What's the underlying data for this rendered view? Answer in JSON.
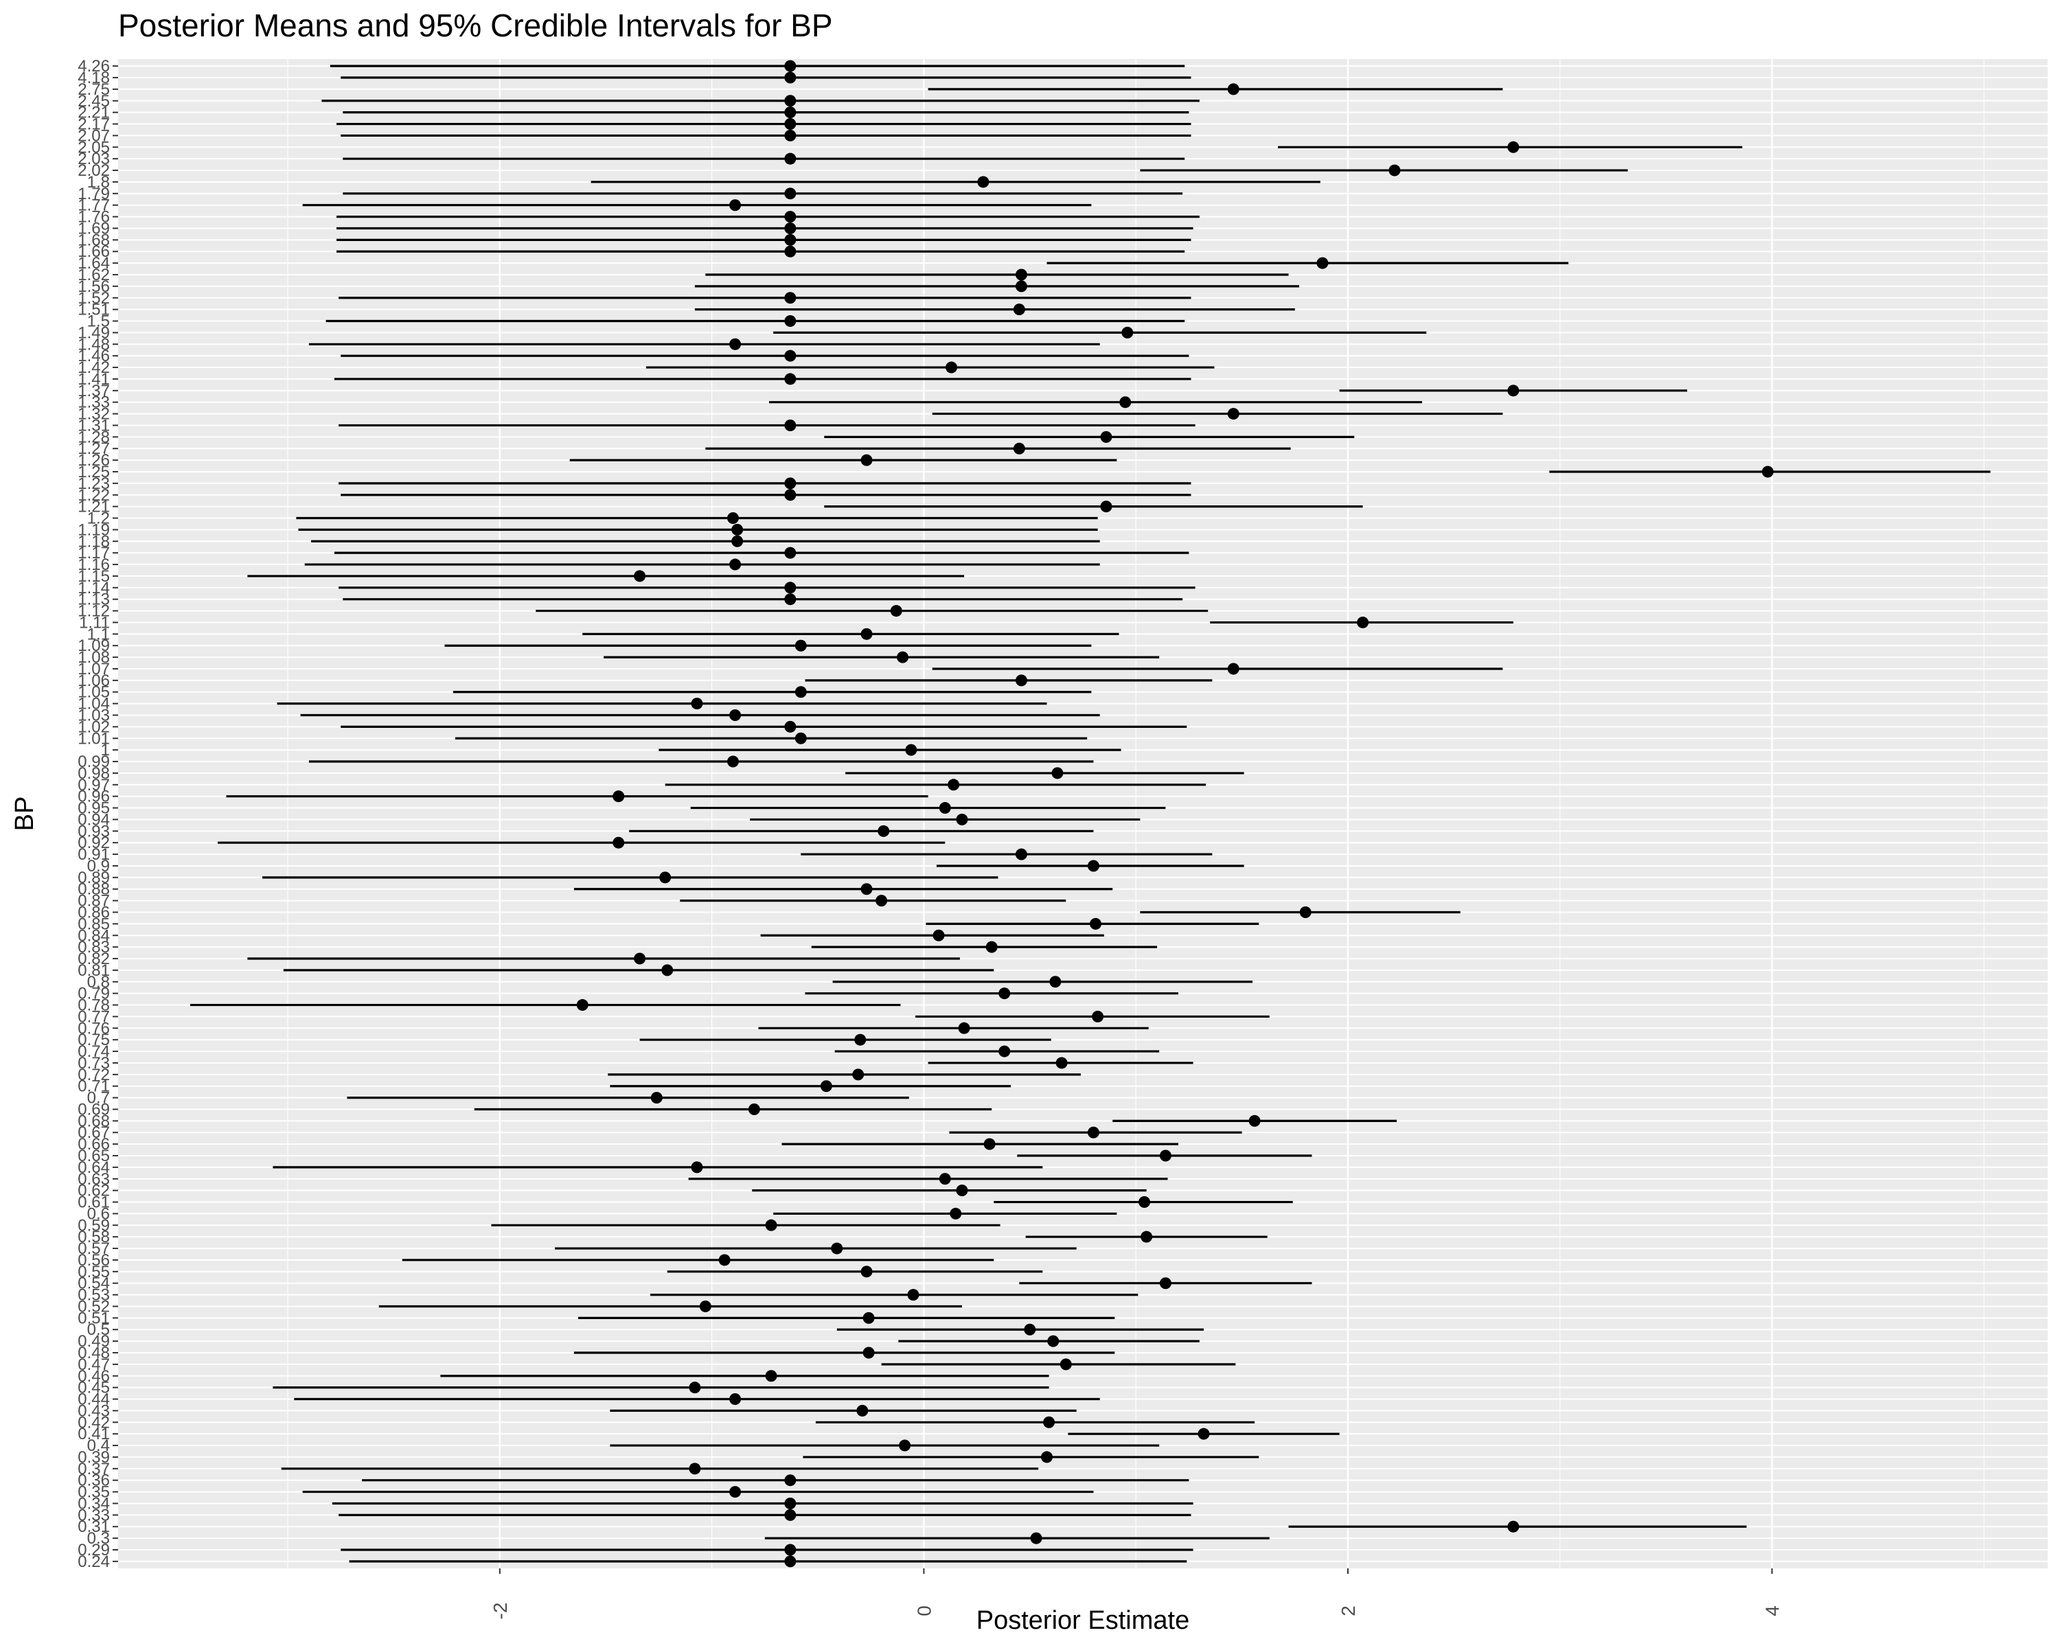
{
  "chart_data": {
    "type": "scatter",
    "title": "Posterior Means and 95% Credible Intervals for BP",
    "xlabel": "Posterior Estimate",
    "ylabel": "BP",
    "xlim": [
      -3.8,
      5.3
    ],
    "x_ticks": [
      -2,
      0,
      2,
      4
    ],
    "x_tick_labels": [
      "-2",
      "0",
      "2",
      "4"
    ],
    "grid": true,
    "colors": {
      "panel": "#ebebeb",
      "grid": "#ffffff",
      "mark": "#000000",
      "tick_text": "#4d4d4d"
    },
    "series": [
      {
        "marker": "point with horizontal interval",
        "points": [
          {
            "label": "4.26",
            "mean": -0.63,
            "lower": -2.8,
            "upper": 1.23
          },
          {
            "label": "4.18",
            "mean": -0.63,
            "lower": -2.75,
            "upper": 1.26
          },
          {
            "label": "2.75",
            "mean": 1.46,
            "lower": 0.02,
            "upper": 2.73
          },
          {
            "label": "2.45",
            "mean": -0.63,
            "lower": -2.84,
            "upper": 1.3
          },
          {
            "label": "2.21",
            "mean": -0.63,
            "lower": -2.74,
            "upper": 1.25
          },
          {
            "label": "2.17",
            "mean": -0.63,
            "lower": -2.77,
            "upper": 1.26
          },
          {
            "label": "2.07",
            "mean": -0.63,
            "lower": -2.75,
            "upper": 1.26
          },
          {
            "label": "2.05",
            "mean": 2.78,
            "lower": 1.67,
            "upper": 3.86
          },
          {
            "label": "2.03",
            "mean": -0.63,
            "lower": -2.74,
            "upper": 1.23
          },
          {
            "label": "2.02",
            "mean": 2.22,
            "lower": 1.02,
            "upper": 3.32
          },
          {
            "label": "1.8",
            "mean": 0.28,
            "lower": -1.57,
            "upper": 1.87
          },
          {
            "label": "1.79",
            "mean": -0.63,
            "lower": -2.74,
            "upper": 1.22
          },
          {
            "label": "1.77",
            "mean": -0.89,
            "lower": -2.93,
            "upper": 0.79
          },
          {
            "label": "1.76",
            "mean": -0.63,
            "lower": -2.77,
            "upper": 1.3
          },
          {
            "label": "1.69",
            "mean": -0.63,
            "lower": -2.77,
            "upper": 1.27
          },
          {
            "label": "1.68",
            "mean": -0.63,
            "lower": -2.77,
            "upper": 1.26
          },
          {
            "label": "1.66",
            "mean": -0.63,
            "lower": -2.77,
            "upper": 1.23
          },
          {
            "label": "1.64",
            "mean": 1.88,
            "lower": 0.58,
            "upper": 3.04
          },
          {
            "label": "1.62",
            "mean": 0.46,
            "lower": -1.03,
            "upper": 1.72
          },
          {
            "label": "1.56",
            "mean": 0.46,
            "lower": -1.08,
            "upper": 1.77
          },
          {
            "label": "1.52",
            "mean": -0.63,
            "lower": -2.76,
            "upper": 1.26
          },
          {
            "label": "1.51",
            "mean": 0.45,
            "lower": -1.08,
            "upper": 1.75
          },
          {
            "label": "1.5",
            "mean": -0.63,
            "lower": -2.82,
            "upper": 1.23
          },
          {
            "label": "1.49",
            "mean": 0.96,
            "lower": -0.71,
            "upper": 2.37
          },
          {
            "label": "1.48",
            "mean": -0.89,
            "lower": -2.9,
            "upper": 0.83
          },
          {
            "label": "1.46",
            "mean": -0.63,
            "lower": -2.75,
            "upper": 1.25
          },
          {
            "label": "1.42",
            "mean": 0.13,
            "lower": -1.31,
            "upper": 1.37
          },
          {
            "label": "1.41",
            "mean": -0.63,
            "lower": -2.78,
            "upper": 1.26
          },
          {
            "label": "1.37",
            "mean": 2.78,
            "lower": 1.96,
            "upper": 3.6
          },
          {
            "label": "1.33",
            "mean": 0.95,
            "lower": -0.73,
            "upper": 2.35
          },
          {
            "label": "1.32",
            "mean": 1.46,
            "lower": 0.04,
            "upper": 2.73
          },
          {
            "label": "1.31",
            "mean": -0.63,
            "lower": -2.76,
            "upper": 1.28
          },
          {
            "label": "1.28",
            "mean": 0.86,
            "lower": -0.47,
            "upper": 2.03
          },
          {
            "label": "1.27",
            "mean": 0.45,
            "lower": -1.03,
            "upper": 1.73
          },
          {
            "label": "1.26",
            "mean": -0.27,
            "lower": -1.67,
            "upper": 0.91
          },
          {
            "label": "1.25",
            "mean": 3.98,
            "lower": 2.95,
            "upper": 5.03
          },
          {
            "label": "1.23",
            "mean": -0.63,
            "lower": -2.76,
            "upper": 1.26
          },
          {
            "label": "1.22",
            "mean": -0.63,
            "lower": -2.75,
            "upper": 1.26
          },
          {
            "label": "1.21",
            "mean": 0.86,
            "lower": -0.47,
            "upper": 2.07
          },
          {
            "label": "1.2",
            "mean": -0.9,
            "lower": -2.96,
            "upper": 0.82
          },
          {
            "label": "1.19",
            "mean": -0.88,
            "lower": -2.95,
            "upper": 0.82
          },
          {
            "label": "1.18",
            "mean": -0.88,
            "lower": -2.89,
            "upper": 0.83
          },
          {
            "label": "1.17",
            "mean": -0.63,
            "lower": -2.78,
            "upper": 1.25
          },
          {
            "label": "1.16",
            "mean": -0.89,
            "lower": -2.92,
            "upper": 0.83
          },
          {
            "label": "1.15",
            "mean": -1.34,
            "lower": -3.19,
            "upper": 0.19
          },
          {
            "label": "1.14",
            "mean": -0.63,
            "lower": -2.76,
            "upper": 1.28
          },
          {
            "label": "1.13",
            "mean": -0.63,
            "lower": -2.74,
            "upper": 1.22
          },
          {
            "label": "1.12",
            "mean": -0.13,
            "lower": -1.83,
            "upper": 1.34
          },
          {
            "label": "1.11",
            "mean": 2.07,
            "lower": 1.35,
            "upper": 2.78
          },
          {
            "label": "1.1",
            "mean": -0.27,
            "lower": -1.61,
            "upper": 0.92
          },
          {
            "label": "1.09",
            "mean": -0.58,
            "lower": -2.26,
            "upper": 0.79
          },
          {
            "label": "1.08",
            "mean": -0.1,
            "lower": -1.51,
            "upper": 1.11
          },
          {
            "label": "1.07",
            "mean": 1.46,
            "lower": 0.04,
            "upper": 2.73
          },
          {
            "label": "1.06",
            "mean": 0.46,
            "lower": -0.56,
            "upper": 1.36
          },
          {
            "label": "1.05",
            "mean": -0.58,
            "lower": -2.22,
            "upper": 0.79
          },
          {
            "label": "1.04",
            "mean": -1.07,
            "lower": -3.05,
            "upper": 0.58
          },
          {
            "label": "1.03",
            "mean": -0.89,
            "lower": -2.94,
            "upper": 0.83
          },
          {
            "label": "1.02",
            "mean": -0.63,
            "lower": -2.75,
            "upper": 1.24
          },
          {
            "label": "1.01",
            "mean": -0.58,
            "lower": -2.21,
            "upper": 0.77
          },
          {
            "label": "1",
            "mean": -0.06,
            "lower": -1.25,
            "upper": 0.93
          },
          {
            "label": "0.99",
            "mean": -0.9,
            "lower": -2.9,
            "upper": 0.8
          },
          {
            "label": "0.98",
            "mean": 0.63,
            "lower": -0.37,
            "upper": 1.51
          },
          {
            "label": "0.97",
            "mean": 0.14,
            "lower": -1.22,
            "upper": 1.33
          },
          {
            "label": "0.96",
            "mean": -1.44,
            "lower": -3.29,
            "upper": 0.02
          },
          {
            "label": "0.95",
            "mean": 0.1,
            "lower": -1.1,
            "upper": 1.14
          },
          {
            "label": "0.94",
            "mean": 0.18,
            "lower": -0.82,
            "upper": 1.02
          },
          {
            "label": "0.93",
            "mean": -0.19,
            "lower": -1.39,
            "upper": 0.8
          },
          {
            "label": "0.92",
            "mean": -1.44,
            "lower": -3.33,
            "upper": 0.1
          },
          {
            "label": "0.91",
            "mean": 0.46,
            "lower": -0.58,
            "upper": 1.36
          },
          {
            "label": "0.9",
            "mean": 0.8,
            "lower": 0.06,
            "upper": 1.51
          },
          {
            "label": "0.89",
            "mean": -1.22,
            "lower": -3.12,
            "upper": 0.35
          },
          {
            "label": "0.88",
            "mean": -0.27,
            "lower": -1.65,
            "upper": 0.89
          },
          {
            "label": "0.87",
            "mean": -0.2,
            "lower": -1.15,
            "upper": 0.67
          },
          {
            "label": "0.86",
            "mean": 1.8,
            "lower": 1.02,
            "upper": 2.53
          },
          {
            "label": "0.85",
            "mean": 0.81,
            "lower": 0.01,
            "upper": 1.58
          },
          {
            "label": "0.84",
            "mean": 0.07,
            "lower": -0.77,
            "upper": 0.85
          },
          {
            "label": "0.83",
            "mean": 0.32,
            "lower": -0.53,
            "upper": 1.1
          },
          {
            "label": "0.82",
            "mean": -1.34,
            "lower": -3.19,
            "upper": 0.17
          },
          {
            "label": "0.81",
            "mean": -1.21,
            "lower": -3.02,
            "upper": 0.33
          },
          {
            "label": "0.8",
            "mean": 0.62,
            "lower": -0.43,
            "upper": 1.55
          },
          {
            "label": "0.79",
            "mean": 0.38,
            "lower": -0.56,
            "upper": 1.2
          },
          {
            "label": "0.78",
            "mean": -1.61,
            "lower": -3.46,
            "upper": -0.11
          },
          {
            "label": "0.77",
            "mean": 0.82,
            "lower": -0.04,
            "upper": 1.63
          },
          {
            "label": "0.76",
            "mean": 0.19,
            "lower": -0.78,
            "upper": 1.06
          },
          {
            "label": "0.75",
            "mean": -0.3,
            "lower": -1.34,
            "upper": 0.6
          },
          {
            "label": "0.74",
            "mean": 0.38,
            "lower": -0.42,
            "upper": 1.11
          },
          {
            "label": "0.73",
            "mean": 0.65,
            "lower": 0.02,
            "upper": 1.27
          },
          {
            "label": "0.72",
            "mean": -0.31,
            "lower": -1.49,
            "upper": 0.74
          },
          {
            "label": "0.71",
            "mean": -0.46,
            "lower": -1.48,
            "upper": 0.41
          },
          {
            "label": "0.7",
            "mean": -1.26,
            "lower": -2.72,
            "upper": -0.07
          },
          {
            "label": "0.69",
            "mean": -0.8,
            "lower": -2.12,
            "upper": 0.32
          },
          {
            "label": "0.68",
            "mean": 1.56,
            "lower": 0.89,
            "upper": 2.23
          },
          {
            "label": "0.67",
            "mean": 0.8,
            "lower": 0.12,
            "upper": 1.5
          },
          {
            "label": "0.66",
            "mean": 0.31,
            "lower": -0.67,
            "upper": 1.2
          },
          {
            "label": "0.65",
            "mean": 1.14,
            "lower": 0.44,
            "upper": 1.83
          },
          {
            "label": "0.64",
            "mean": -1.07,
            "lower": -3.07,
            "upper": 0.56
          },
          {
            "label": "0.63",
            "mean": 0.1,
            "lower": -1.11,
            "upper": 1.15
          },
          {
            "label": "0.62",
            "mean": 0.18,
            "lower": -0.81,
            "upper": 1.05
          },
          {
            "label": "0.61",
            "mean": 1.04,
            "lower": 0.33,
            "upper": 1.74
          },
          {
            "label": "0.6",
            "mean": 0.15,
            "lower": -0.71,
            "upper": 0.91
          },
          {
            "label": "0.59",
            "mean": -0.72,
            "lower": -2.04,
            "upper": 0.36
          },
          {
            "label": "0.58",
            "mean": 1.05,
            "lower": 0.48,
            "upper": 1.62
          },
          {
            "label": "0.57",
            "mean": -0.41,
            "lower": -1.74,
            "upper": 0.72
          },
          {
            "label": "0.56",
            "mean": -0.94,
            "lower": -2.46,
            "upper": 0.33
          },
          {
            "label": "0.55",
            "mean": -0.27,
            "lower": -1.21,
            "upper": 0.56
          },
          {
            "label": "0.54",
            "mean": 1.14,
            "lower": 0.45,
            "upper": 1.83
          },
          {
            "label": "0.53",
            "mean": -0.05,
            "lower": -1.29,
            "upper": 1.01
          },
          {
            "label": "0.52",
            "mean": -1.03,
            "lower": -2.57,
            "upper": 0.18
          },
          {
            "label": "0.51",
            "mean": -0.26,
            "lower": -1.63,
            "upper": 0.9
          },
          {
            "label": "0.5",
            "mean": 0.5,
            "lower": -0.41,
            "upper": 1.32
          },
          {
            "label": "0.49",
            "mean": 0.61,
            "lower": -0.12,
            "upper": 1.3
          },
          {
            "label": "0.48",
            "mean": -0.26,
            "lower": -1.65,
            "upper": 0.9
          },
          {
            "label": "0.47",
            "mean": 0.67,
            "lower": -0.2,
            "upper": 1.47
          },
          {
            "label": "0.46",
            "mean": -0.72,
            "lower": -2.28,
            "upper": 0.59
          },
          {
            "label": "0.45",
            "mean": -1.08,
            "lower": -3.07,
            "upper": 0.59
          },
          {
            "label": "0.44",
            "mean": -0.89,
            "lower": -2.97,
            "upper": 0.83
          },
          {
            "label": "0.43",
            "mean": -0.29,
            "lower": -1.48,
            "upper": 0.72
          },
          {
            "label": "0.42",
            "mean": 0.59,
            "lower": -0.51,
            "upper": 1.56
          },
          {
            "label": "0.41",
            "mean": 1.32,
            "lower": 0.68,
            "upper": 1.96
          },
          {
            "label": "0.4",
            "mean": -0.09,
            "lower": -1.48,
            "upper": 1.11
          },
          {
            "label": "0.39",
            "mean": 0.58,
            "lower": -0.57,
            "upper": 1.58
          },
          {
            "label": "0.37",
            "mean": -1.08,
            "lower": -3.03,
            "upper": 0.54
          },
          {
            "label": "0.36",
            "mean": -0.63,
            "lower": -2.65,
            "upper": 1.25
          },
          {
            "label": "0.35",
            "mean": -0.89,
            "lower": -2.93,
            "upper": 0.8
          },
          {
            "label": "0.34",
            "mean": -0.63,
            "lower": -2.79,
            "upper": 1.27
          },
          {
            "label": "0.33",
            "mean": -0.63,
            "lower": -2.76,
            "upper": 1.26
          },
          {
            "label": "0.31",
            "mean": 2.78,
            "lower": 1.72,
            "upper": 3.88
          },
          {
            "label": "0.3",
            "mean": 0.53,
            "lower": -0.75,
            "upper": 1.63
          },
          {
            "label": "0.29",
            "mean": -0.63,
            "lower": -2.75,
            "upper": 1.27
          },
          {
            "label": "0.24",
            "mean": -0.63,
            "lower": -2.71,
            "upper": 1.24
          }
        ]
      }
    ]
  }
}
